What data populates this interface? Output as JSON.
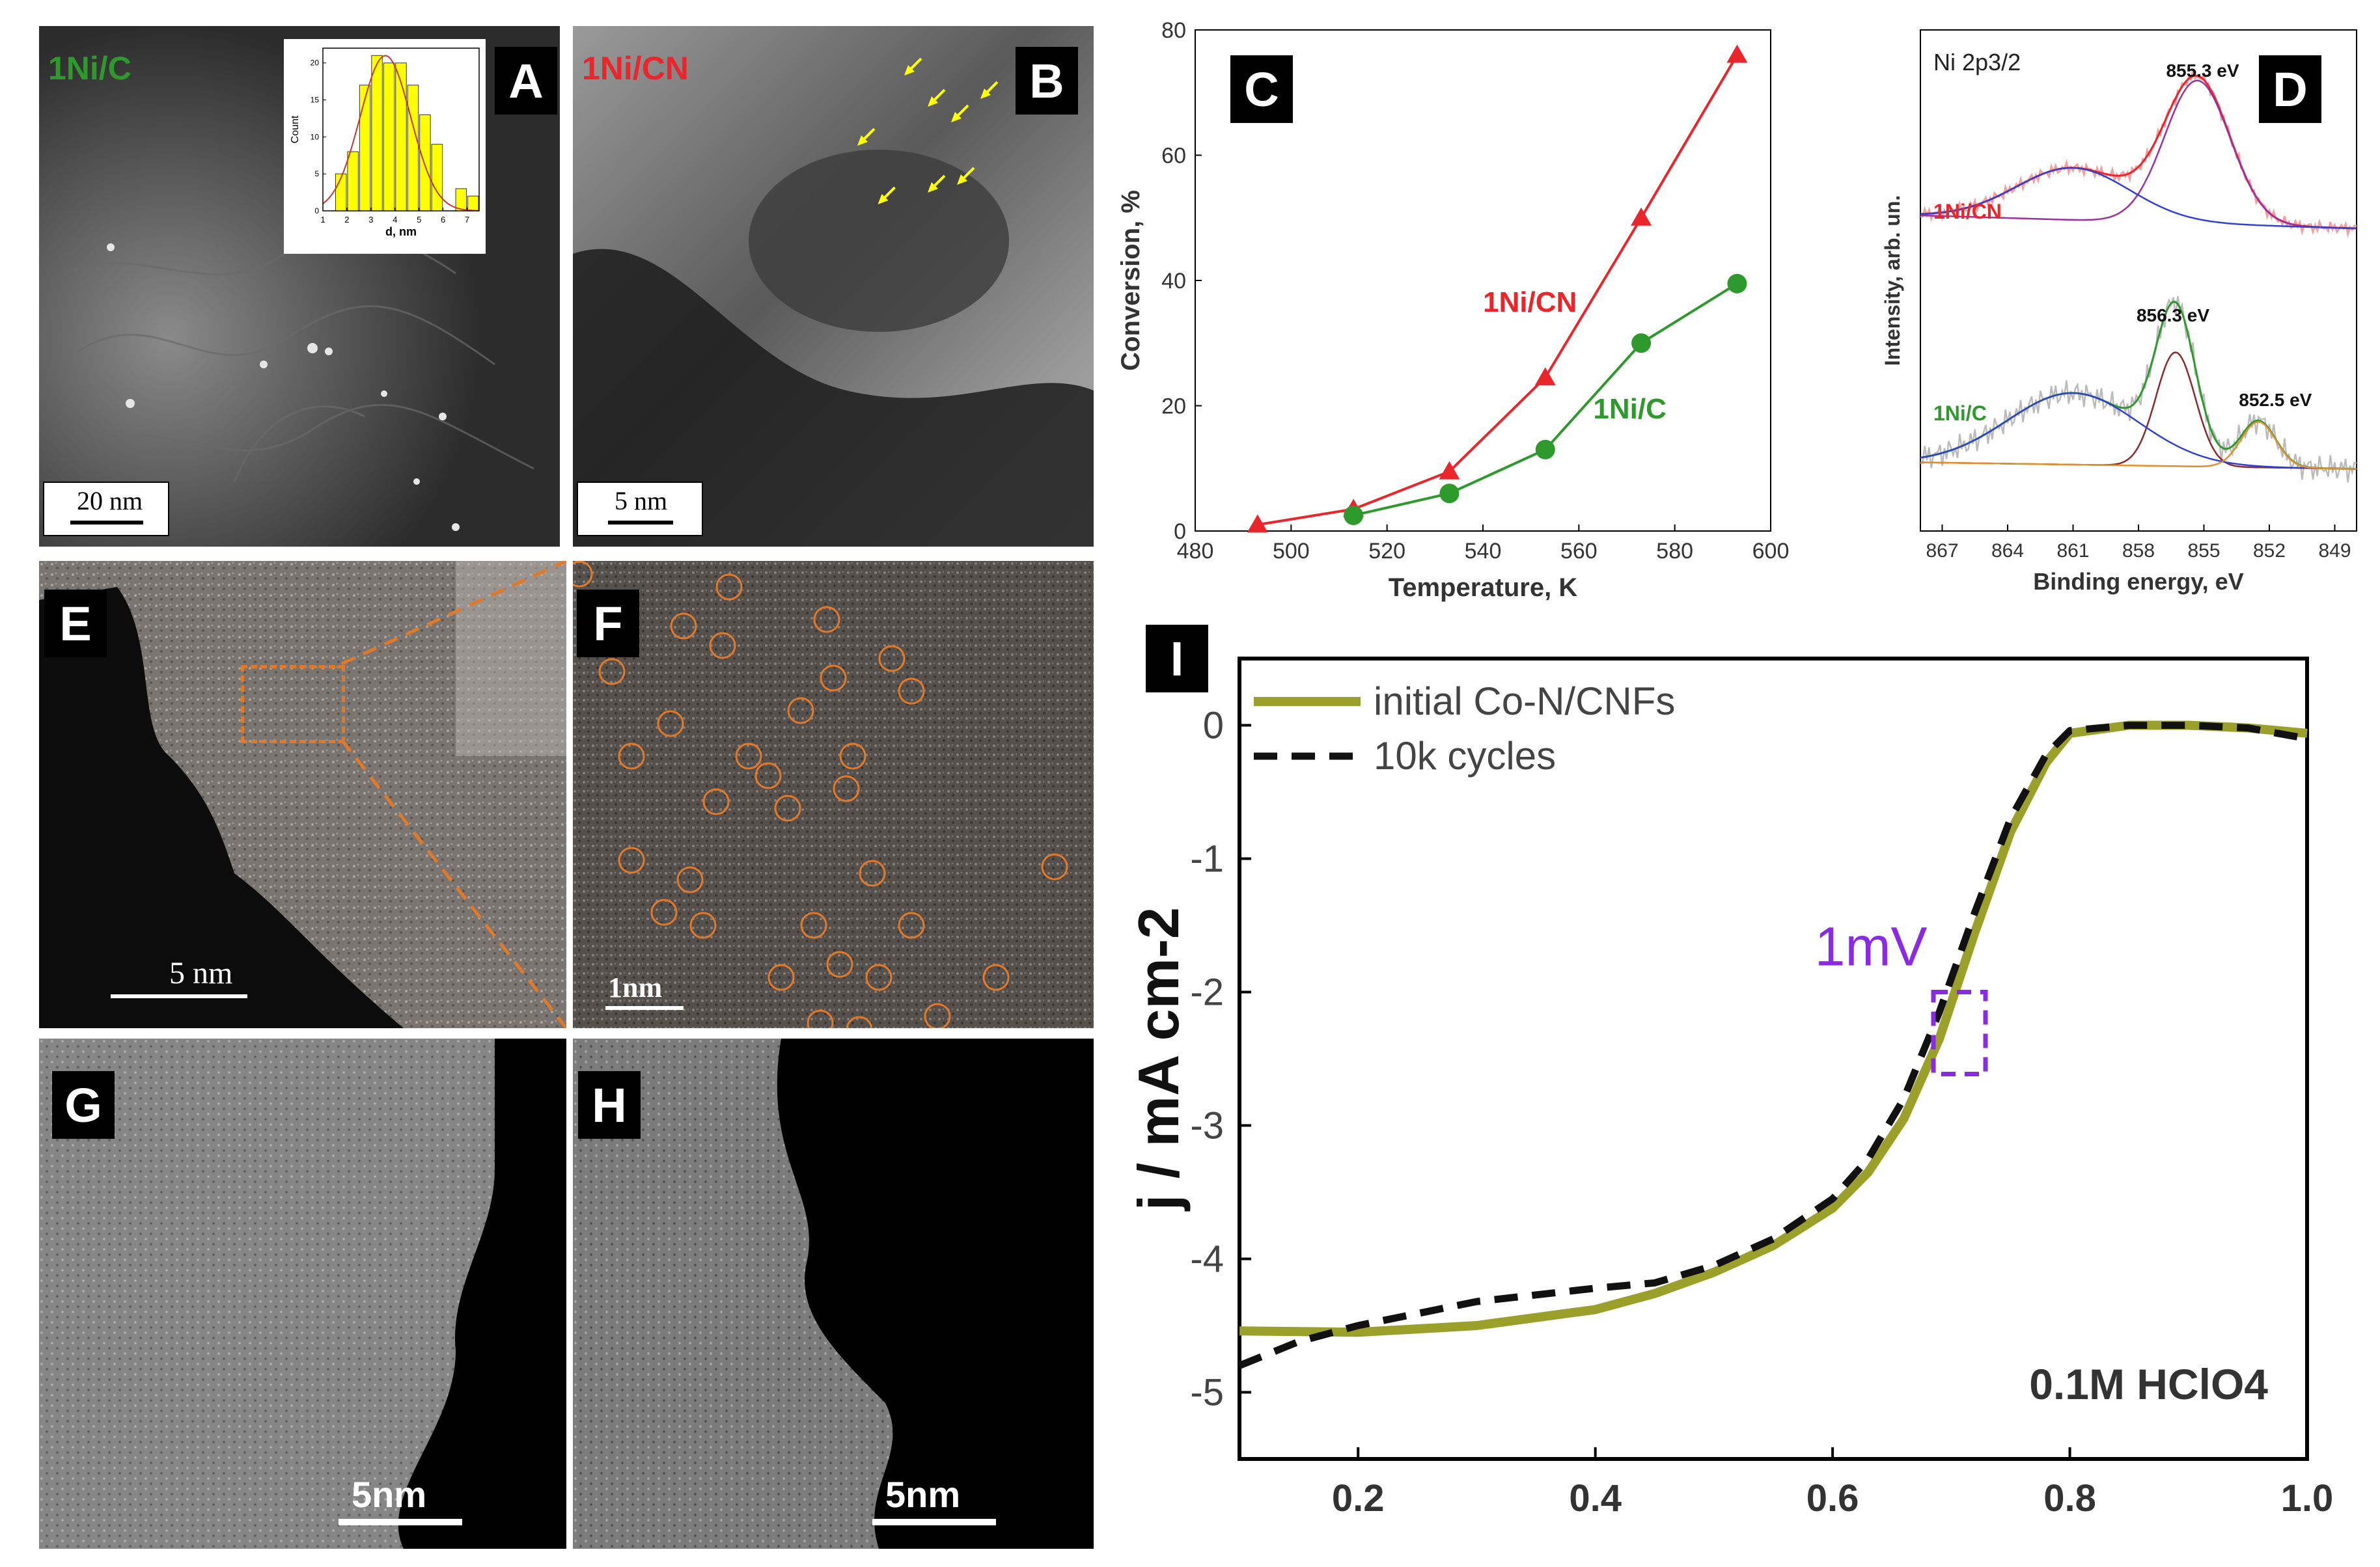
{
  "panels": {
    "A": {
      "letter": "A",
      "sample": "1Ni/C",
      "scalebar": "20 nm"
    },
    "B": {
      "letter": "B",
      "sample": "1Ni/CN",
      "scalebar": "5 nm"
    },
    "C": {
      "letter": "C"
    },
    "D": {
      "letter": "D",
      "title": "Ni 2p3/2",
      "ylabel": "Intensity, arb. un.",
      "xlabel": "Binding energy, eV",
      "series_labels": [
        "1Ni/CN",
        "1Ni/C"
      ],
      "peak_labels": [
        "855.3 eV",
        "856.3 eV",
        "852.5 eV"
      ],
      "xticks": [
        "867",
        "864",
        "861",
        "858",
        "855",
        "852",
        "849"
      ]
    },
    "E": {
      "letter": "E",
      "scalebar": "5 nm"
    },
    "F": {
      "letter": "F",
      "scalebar": "1nm"
    },
    "G": {
      "letter": "G",
      "scalebar": "5nm"
    },
    "H": {
      "letter": "H",
      "scalebar": "5nm"
    },
    "I": {
      "letter": "I",
      "annotation": "1mV",
      "electrolyte": "0.1M HClO4"
    }
  },
  "colors": {
    "red": "#e8262c",
    "green": "#2e9a2e",
    "olive": "#9aa02a",
    "purple": "#8a2be2",
    "yellow": "#ffff00",
    "orange": "#e07a2a"
  },
  "chart_data": [
    {
      "id": "histogram_A",
      "type": "bar",
      "title": "",
      "xlabel": "d, nm",
      "ylabel": "Count",
      "x": [
        1.75,
        2.25,
        2.75,
        3.25,
        3.75,
        4.25,
        4.75,
        5.25,
        5.75,
        6.75,
        7.25
      ],
      "values": [
        5,
        8,
        17,
        21,
        20,
        20,
        17,
        13,
        9,
        3,
        2
      ],
      "xlim": [
        1,
        7.5
      ],
      "ylim": [
        0,
        22
      ],
      "xticks": [
        1,
        2,
        3,
        4,
        5,
        6,
        7
      ],
      "yticks": [
        0,
        5,
        10,
        15,
        20
      ]
    },
    {
      "id": "conversion_C",
      "type": "line",
      "xlabel": "Temperature, K",
      "ylabel": "Conversion, %",
      "xlim": [
        480,
        600
      ],
      "ylim": [
        0,
        80
      ],
      "xticks": [
        480,
        500,
        520,
        540,
        560,
        580,
        600
      ],
      "yticks": [
        0,
        20,
        40,
        60,
        80
      ],
      "series": [
        {
          "name": "1Ni/CN",
          "x": [
            493,
            513,
            533,
            553,
            573,
            593
          ],
          "values": [
            1,
            3.5,
            9.5,
            24.5,
            50,
            76
          ]
        },
        {
          "name": "1Ni/C",
          "x": [
            513,
            533,
            553,
            573,
            593
          ],
          "values": [
            2.5,
            6,
            13,
            30,
            39.5
          ]
        }
      ]
    },
    {
      "id": "lsv_I",
      "type": "line",
      "xlabel": "",
      "ylabel": "j / mA cm-2",
      "xlim": [
        0.1,
        1.0
      ],
      "ylim": [
        -5.5,
        0.5
      ],
      "xticks": [
        "0.2",
        "0.4",
        "0.6",
        "0.8",
        "1.0"
      ],
      "yticks": [
        "0",
        "-1",
        "-2",
        "-3",
        "-4",
        "-5"
      ],
      "legend_position": "top-left",
      "series": [
        {
          "name": "initial Co-N/CNFs",
          "x": [
            0.1,
            0.2,
            0.3,
            0.4,
            0.45,
            0.5,
            0.55,
            0.6,
            0.63,
            0.66,
            0.69,
            0.72,
            0.75,
            0.78,
            0.8,
            0.85,
            0.9,
            0.95,
            1.0
          ],
          "values": [
            -4.54,
            -4.55,
            -4.5,
            -4.38,
            -4.26,
            -4.1,
            -3.9,
            -3.62,
            -3.35,
            -2.95,
            -2.35,
            -1.55,
            -0.8,
            -0.28,
            -0.06,
            0.0,
            0.0,
            -0.02,
            -0.06
          ]
        },
        {
          "name": "10k cycles",
          "x": [
            0.1,
            0.15,
            0.2,
            0.3,
            0.4,
            0.45,
            0.5,
            0.55,
            0.6,
            0.63,
            0.66,
            0.69,
            0.72,
            0.75,
            0.78,
            0.8,
            0.85,
            0.9,
            0.95,
            1.0
          ],
          "values": [
            -4.8,
            -4.62,
            -4.5,
            -4.32,
            -4.22,
            -4.18,
            -4.05,
            -3.85,
            -3.55,
            -3.25,
            -2.8,
            -2.15,
            -1.4,
            -0.7,
            -0.22,
            -0.04,
            0.0,
            0.0,
            -0.02,
            -0.1
          ]
        }
      ]
    }
  ]
}
